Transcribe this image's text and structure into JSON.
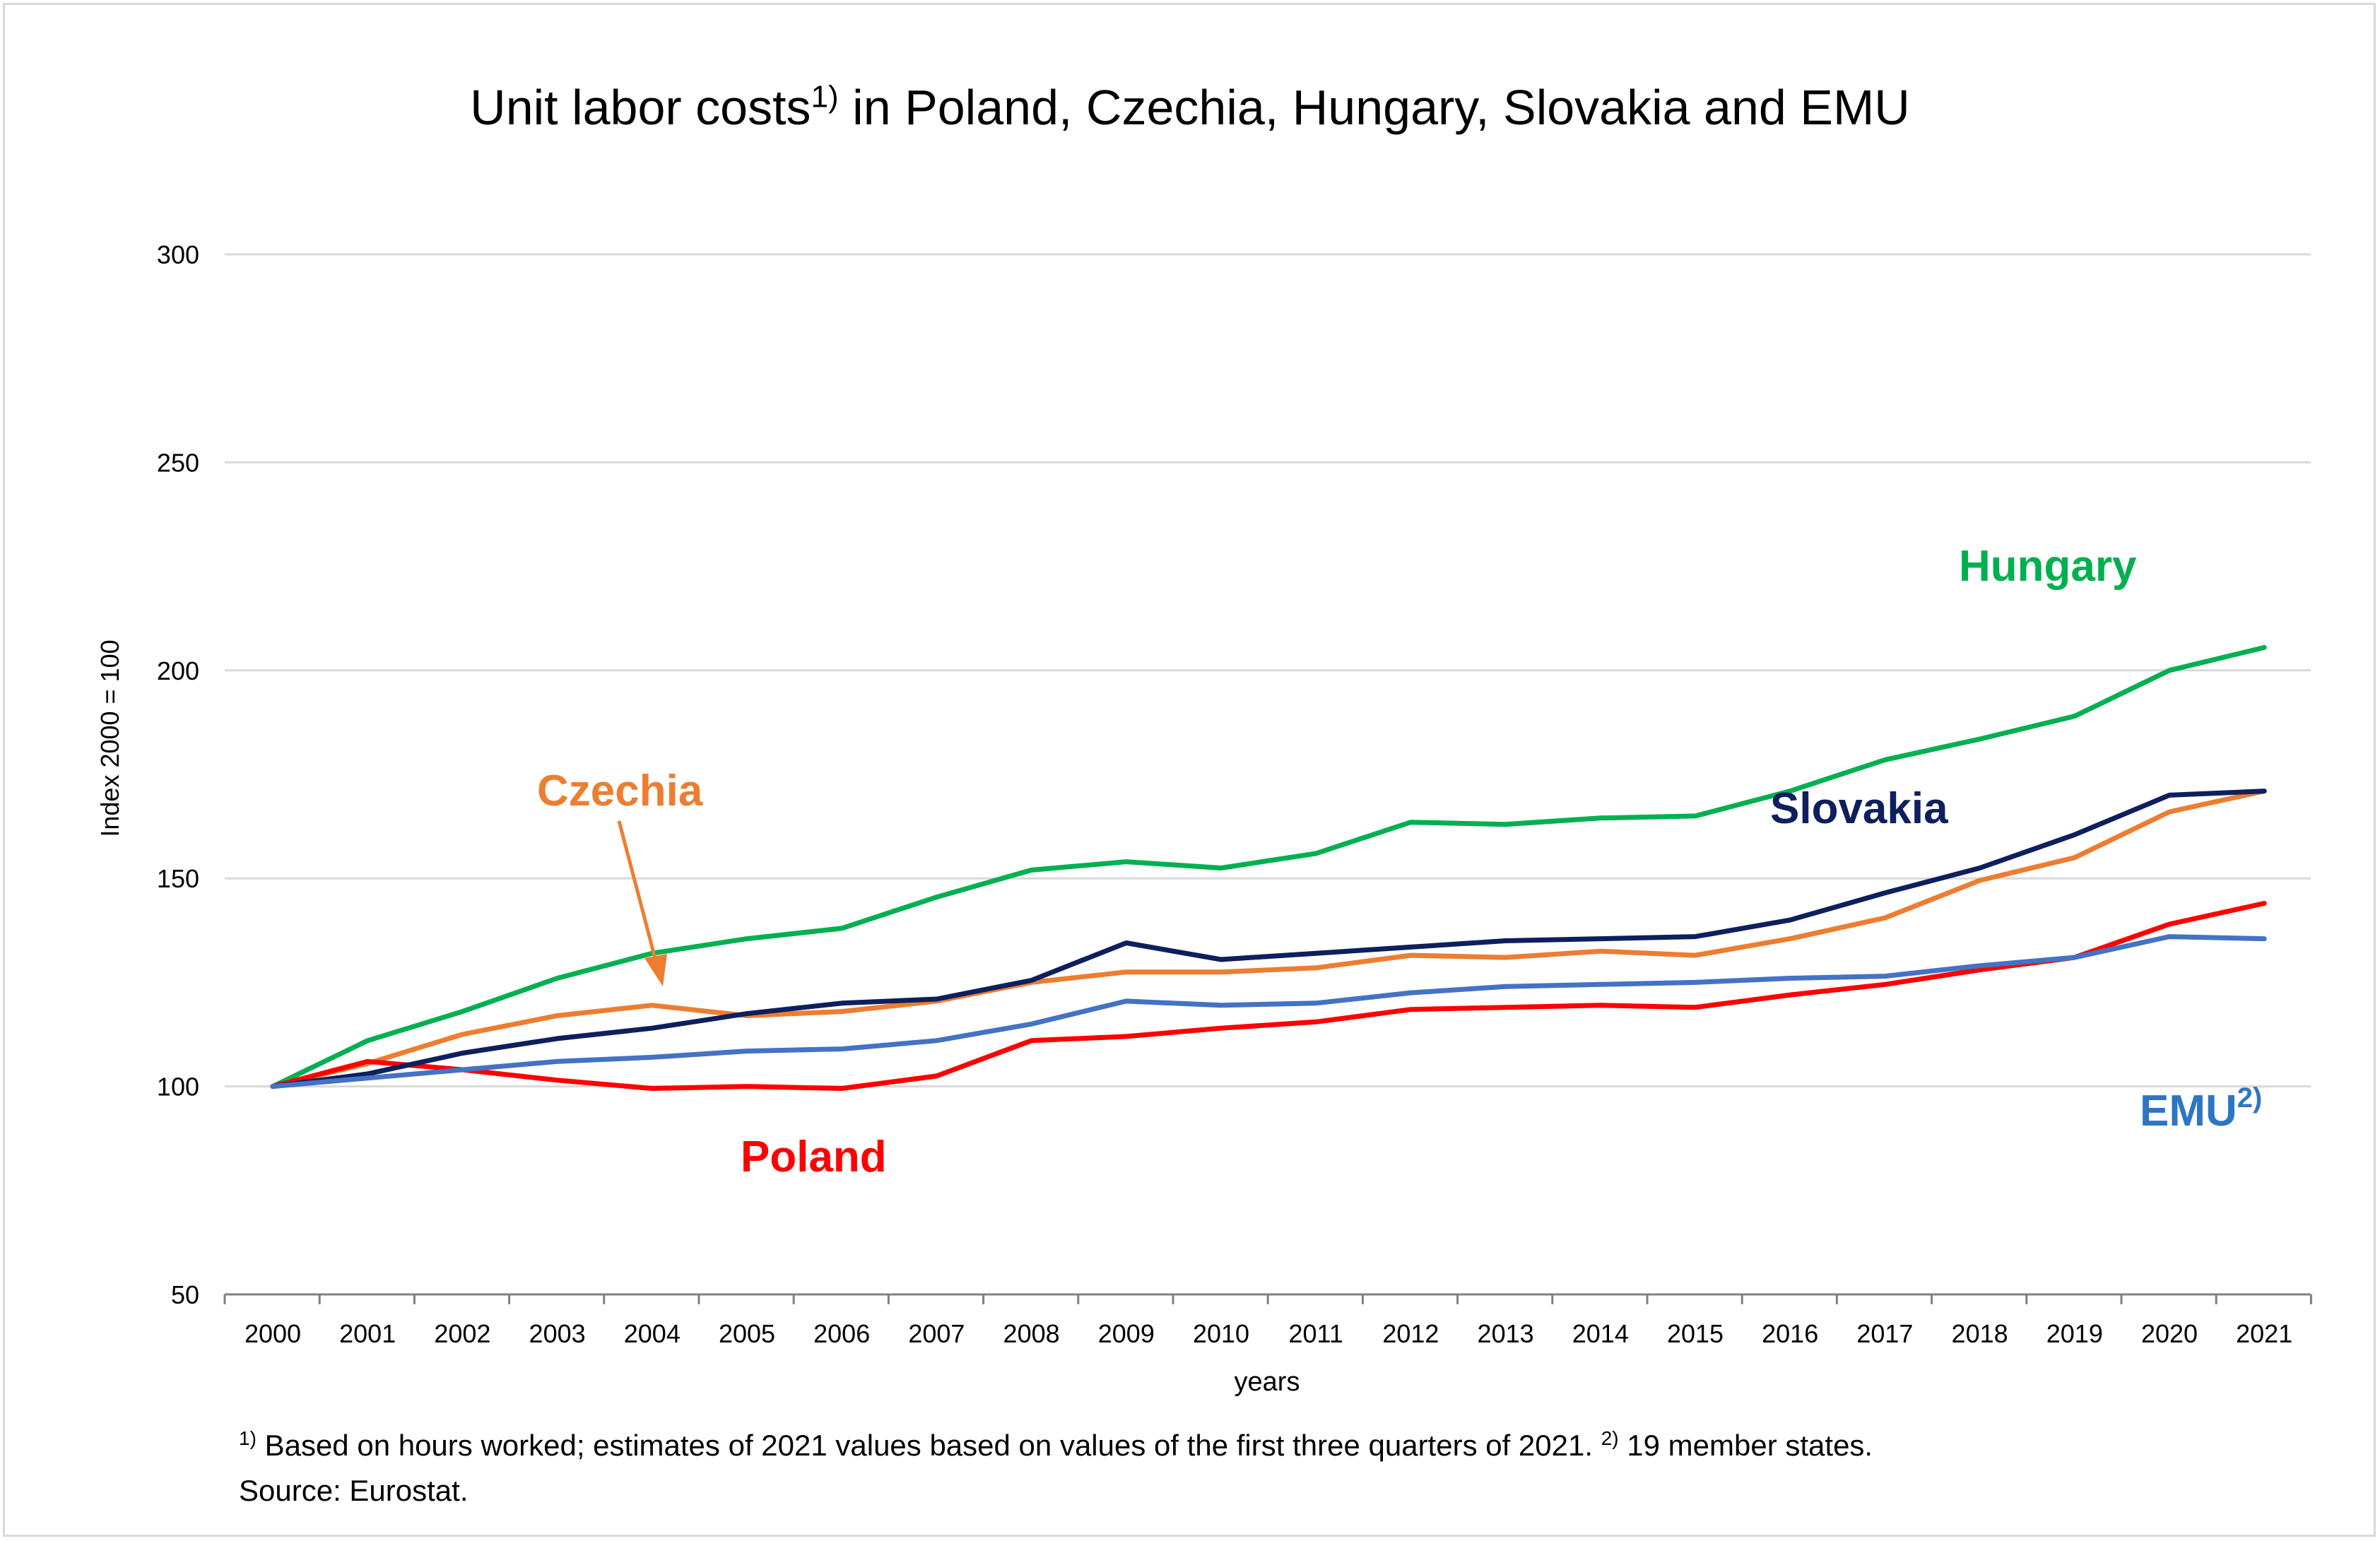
{
  "chart_data": {
    "type": "line",
    "title": "Unit labor costs",
    "title_note_marker": "1)",
    "title_suffix": " in Poland, Czechia, Hungary, Slovakia and EMU",
    "xlabel": "years",
    "ylabel": "Index 2000 = 100",
    "ylim": [
      50,
      300
    ],
    "y_ticks": [
      50,
      100,
      150,
      200,
      250,
      300
    ],
    "grid": true,
    "x": [
      "2000",
      "2001",
      "2002",
      "2003",
      "2004",
      "2005",
      "2006",
      "2007",
      "2008",
      "2009",
      "2010",
      "2011",
      "2012",
      "2013",
      "2014",
      "2015",
      "2016",
      "2017",
      "2018",
      "2019",
      "2020",
      "2021"
    ],
    "series": [
      {
        "name": "Hungary",
        "label_marker": "",
        "color": "#00b050",
        "values": [
          100,
          111,
          118,
          126,
          132,
          135.5,
          138,
          145.5,
          152,
          154,
          152.5,
          156,
          163.5,
          163,
          164.5,
          165,
          171,
          178.5,
          183.5,
          189,
          200,
          205.5
        ]
      },
      {
        "name": "Slovakia",
        "label_marker": "",
        "color": "#0d1f5c",
        "values": [
          100,
          103,
          108,
          111.5,
          114,
          117.5,
          120,
          121,
          125.5,
          134.5,
          130.5,
          132,
          133.5,
          135,
          135.5,
          136,
          140,
          146.5,
          152.5,
          160.5,
          170,
          171
        ]
      },
      {
        "name": "Czechia",
        "label_marker": "",
        "color": "#ed7d31",
        "values": [
          100,
          105.5,
          112.5,
          117,
          119.5,
          117,
          118,
          120.5,
          125,
          127.5,
          127.5,
          128.5,
          131.5,
          131,
          132.5,
          131.5,
          135.5,
          140.5,
          149.5,
          155,
          166,
          171
        ]
      },
      {
        "name": "Poland",
        "label_marker": "",
        "color": "#ff0000",
        "values": [
          100,
          106,
          104,
          101.5,
          99.5,
          100,
          99.5,
          102.5,
          111,
          112,
          114,
          115.5,
          118.5,
          119,
          119.5,
          119,
          122,
          124.5,
          128,
          131,
          139,
          144
        ]
      },
      {
        "name": "EMU",
        "label_marker": "2)",
        "color": "#4472c4",
        "values": [
          100,
          102,
          104,
          106,
          107,
          108.5,
          109,
          111,
          115,
          120.5,
          119.5,
          120,
          122.5,
          124,
          124.5,
          125,
          126,
          126.5,
          129,
          131,
          136,
          135.5
        ]
      }
    ],
    "label_colors": {
      "Hungary": "#00b050",
      "Slovakia": "#0d1f5c",
      "Czechia": "#ed7d31",
      "Poland": "#ff0000",
      "EMU": "#2e75c5"
    }
  },
  "footnotes": {
    "note1_marker": "1)",
    "note1_text": " Based on hours worked; estimates of 2021 values based on values of the first three quarters of 2021. ",
    "note2_marker": "2)",
    "note2_text": " 19 member states.",
    "source": "Source: Eurostat."
  }
}
